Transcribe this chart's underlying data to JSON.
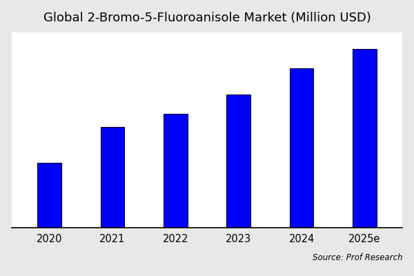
{
  "title": "Global 2-Bromo-5-Fluoroanisole Market (Million USD)",
  "categories": [
    "2020",
    "2021",
    "2022",
    "2023",
    "2024",
    "2025e"
  ],
  "values": [
    1.0,
    1.55,
    1.75,
    2.05,
    2.45,
    2.75
  ],
  "bar_color": "#0000ff",
  "figure_facecolor": "#e8e8e8",
  "plot_facecolor": "#ffffff",
  "title_fontsize": 13,
  "tick_fontsize": 10.5,
  "source_text": "Source: Prof Research",
  "source_fontsize": 8.5,
  "ylim": [
    0,
    3.0
  ],
  "bar_width": 0.38
}
